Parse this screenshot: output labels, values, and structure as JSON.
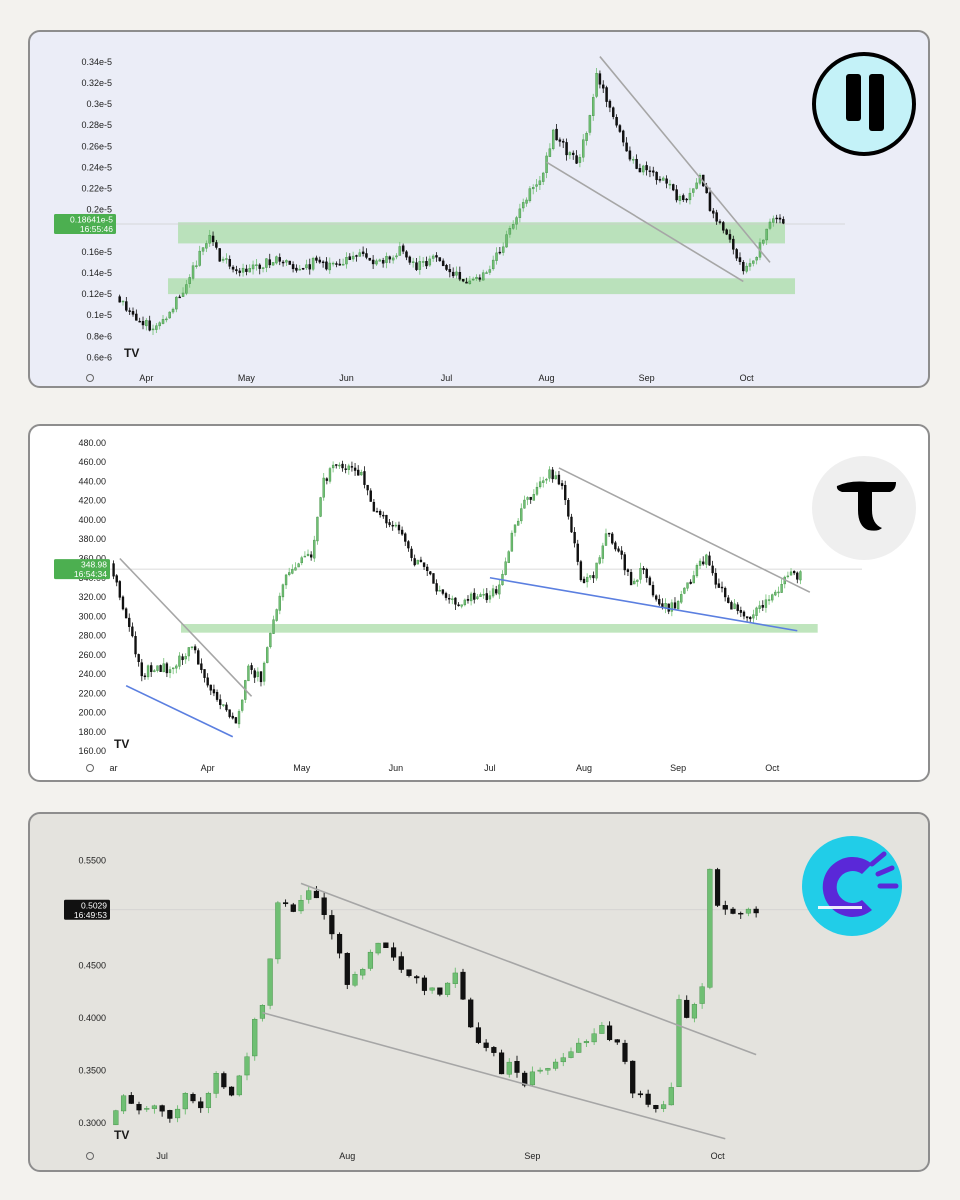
{
  "chart_data": [
    {
      "type": "candlestick",
      "y_ticks": [
        "0.34e-5",
        "0.32e-5",
        "0.3e-5",
        "0.28e-5",
        "0.26e-5",
        "0.24e-5",
        "0.22e-5",
        "0.2e-5",
        "0.16e-5",
        "0.14e-5",
        "0.12e-5",
        "0.1e-5",
        "0.8e-6",
        "0.6e-6"
      ],
      "y_tick_values": [
        3.4,
        3.2,
        3.0,
        2.8,
        2.6,
        2.4,
        2.2,
        2.0,
        1.6,
        1.4,
        1.2,
        1.0,
        0.8,
        0.6
      ],
      "y_unit_note": "values in units of 1e-6",
      "ylim": [
        0.5,
        3.55
      ],
      "x_ticks": [
        "Apr",
        "May",
        "Jun",
        "Jul",
        "Aug",
        "Sep",
        "Oct"
      ],
      "x_tick_index": [
        8,
        38,
        68,
        98,
        128,
        158,
        188
      ],
      "x_count": 200,
      "current_price": {
        "value": 1.8641,
        "label": "0.18641e-5",
        "timer": "16:55:46"
      },
      "zones": [
        {
          "from": 1.68,
          "to": 1.88,
          "x_start": 18,
          "x_end": 199
        },
        {
          "from": 1.2,
          "to": 1.35,
          "x_start": 15,
          "x_end": 202
        }
      ],
      "trendlines": [
        {
          "x1": 144,
          "y1": 3.45,
          "x2": 195,
          "y2": 1.5
        },
        {
          "x1": 128,
          "y1": 2.45,
          "x2": 187,
          "y2": 1.32
        }
      ],
      "path": [
        [
          0,
          1.18
        ],
        [
          4,
          1.05
        ],
        [
          8,
          0.92
        ],
        [
          12,
          0.88
        ],
        [
          16,
          1.05
        ],
        [
          20,
          1.25
        ],
        [
          24,
          1.5
        ],
        [
          28,
          1.76
        ],
        [
          31,
          1.55
        ],
        [
          36,
          1.42
        ],
        [
          42,
          1.45
        ],
        [
          48,
          1.55
        ],
        [
          54,
          1.4
        ],
        [
          60,
          1.52
        ],
        [
          66,
          1.44
        ],
        [
          72,
          1.58
        ],
        [
          78,
          1.48
        ],
        [
          85,
          1.62
        ],
        [
          90,
          1.45
        ],
        [
          95,
          1.55
        ],
        [
          100,
          1.4
        ],
        [
          105,
          1.32
        ],
        [
          110,
          1.4
        ],
        [
          114,
          1.55
        ],
        [
          118,
          1.8
        ],
        [
          124,
          2.2
        ],
        [
          128,
          2.35
        ],
        [
          131,
          2.72
        ],
        [
          134,
          2.6
        ],
        [
          138,
          2.45
        ],
        [
          141,
          2.7
        ],
        [
          144,
          3.25
        ],
        [
          147,
          3.05
        ],
        [
          150,
          2.8
        ],
        [
          154,
          2.45
        ],
        [
          160,
          2.35
        ],
        [
          165,
          2.25
        ],
        [
          170,
          2.05
        ],
        [
          175,
          2.28
        ],
        [
          179,
          1.95
        ],
        [
          182,
          1.8
        ],
        [
          185,
          1.62
        ],
        [
          188,
          1.45
        ],
        [
          191,
          1.52
        ],
        [
          194,
          1.72
        ],
        [
          197,
          1.95
        ],
        [
          200,
          1.88
        ]
      ],
      "seed": 11
    },
    {
      "type": "candlestick",
      "y_ticks": [
        "480.00",
        "460.00",
        "440.00",
        "420.00",
        "400.00",
        "380.00",
        "360.00",
        "340.00",
        "320.00",
        "300.00",
        "280.00",
        "260.00",
        "240.00",
        "220.00",
        "200.00",
        "180.00",
        "160.00"
      ],
      "y_tick_values": [
        480,
        460,
        440,
        420,
        400,
        380,
        360,
        340,
        320,
        300,
        280,
        260,
        240,
        220,
        200,
        180,
        160
      ],
      "ylim": [
        155,
        483
      ],
      "x_ticks": [
        "ar",
        "Apr",
        "May",
        "Jun",
        "Jul",
        "Aug",
        "Sep",
        "Oct"
      ],
      "x_tick_index": [
        0,
        30,
        60,
        90,
        120,
        150,
        180,
        210
      ],
      "x_count": 220,
      "current_price": {
        "value": 348.98,
        "label": "348.98",
        "timer": "16:54:34"
      },
      "zones": [
        {
          "from": 283,
          "to": 292,
          "x_start": 22,
          "x_end": 224
        }
      ],
      "trendlines": [
        {
          "x1": 2,
          "y1": 360,
          "x2": 44,
          "y2": 217
        },
        {
          "x1": 4,
          "y1": 228,
          "x2": 38,
          "y2": 175
        },
        {
          "x1": 142,
          "y1": 454,
          "x2": 222,
          "y2": 325
        },
        {
          "x1": 120,
          "y1": 340,
          "x2": 218,
          "y2": 285
        }
      ],
      "path": [
        [
          0,
          355
        ],
        [
          6,
          290
        ],
        [
          10,
          240
        ],
        [
          14,
          248
        ],
        [
          20,
          245
        ],
        [
          26,
          272
        ],
        [
          30,
          235
        ],
        [
          34,
          212
        ],
        [
          38,
          200
        ],
        [
          40,
          185
        ],
        [
          44,
          245
        ],
        [
          48,
          235
        ],
        [
          52,
          300
        ],
        [
          56,
          345
        ],
        [
          60,
          355
        ],
        [
          64,
          362
        ],
        [
          68,
          440
        ],
        [
          72,
          462
        ],
        [
          76,
          455
        ],
        [
          80,
          448
        ],
        [
          84,
          412
        ],
        [
          88,
          400
        ],
        [
          92,
          392
        ],
        [
          96,
          360
        ],
        [
          100,
          350
        ],
        [
          104,
          330
        ],
        [
          110,
          312
        ],
        [
          116,
          322
        ],
        [
          120,
          318
        ],
        [
          124,
          330
        ],
        [
          128,
          385
        ],
        [
          132,
          422
        ],
        [
          136,
          430
        ],
        [
          140,
          450
        ],
        [
          144,
          436
        ],
        [
          148,
          372
        ],
        [
          150,
          335
        ],
        [
          154,
          342
        ],
        [
          158,
          385
        ],
        [
          162,
          370
        ],
        [
          166,
          332
        ],
        [
          170,
          350
        ],
        [
          174,
          315
        ],
        [
          178,
          308
        ],
        [
          182,
          318
        ],
        [
          186,
          345
        ],
        [
          190,
          362
        ],
        [
          194,
          330
        ],
        [
          198,
          312
        ],
        [
          202,
          298
        ],
        [
          206,
          305
        ],
        [
          210,
          318
        ],
        [
          214,
          330
        ],
        [
          216,
          342
        ]
      ],
      "seed": 23
    },
    {
      "type": "candlestick",
      "y_ticks": [
        "0.5500",
        "0.4500",
        "0.4000",
        "0.3500",
        "0.3000"
      ],
      "y_tick_values": [
        0.55,
        0.45,
        0.4,
        0.35,
        0.3
      ],
      "ylim": [
        0.28,
        0.575
      ],
      "x_ticks": [
        "Jul",
        "Aug",
        "Sep",
        "Oct"
      ],
      "x_tick_index": [
        6,
        30,
        54,
        78
      ],
      "x_count": 84,
      "current_price": {
        "value": 0.5029,
        "label": "0.5029",
        "timer": "16:49:53"
      },
      "zones": [],
      "trendlines": [
        {
          "x1": 24,
          "y1": 0.528,
          "x2": 83,
          "y2": 0.365
        },
        {
          "x1": 19,
          "y1": 0.405,
          "x2": 79,
          "y2": 0.285
        }
      ],
      "path": [
        [
          0,
          0.298
        ],
        [
          2,
          0.33
        ],
        [
          4,
          0.31
        ],
        [
          6,
          0.32
        ],
        [
          8,
          0.305
        ],
        [
          10,
          0.33
        ],
        [
          12,
          0.315
        ],
        [
          14,
          0.345
        ],
        [
          16,
          0.33
        ],
        [
          18,
          0.36
        ],
        [
          19,
          0.4
        ],
        [
          20,
          0.415
        ],
        [
          21,
          0.46
        ],
        [
          22,
          0.51
        ],
        [
          24,
          0.505
        ],
        [
          26,
          0.522
        ],
        [
          28,
          0.5
        ],
        [
          29,
          0.48
        ],
        [
          30,
          0.46
        ],
        [
          31,
          0.43
        ],
        [
          33,
          0.45
        ],
        [
          35,
          0.47
        ],
        [
          37,
          0.46
        ],
        [
          39,
          0.44
        ],
        [
          41,
          0.43
        ],
        [
          43,
          0.42
        ],
        [
          45,
          0.44
        ],
        [
          46,
          0.42
        ],
        [
          47,
          0.39
        ],
        [
          48,
          0.38
        ],
        [
          50,
          0.365
        ],
        [
          51,
          0.345
        ],
        [
          52,
          0.355
        ],
        [
          54,
          0.34
        ],
        [
          56,
          0.35
        ],
        [
          58,
          0.36
        ],
        [
          60,
          0.37
        ],
        [
          62,
          0.38
        ],
        [
          64,
          0.39
        ],
        [
          66,
          0.375
        ],
        [
          67,
          0.36
        ],
        [
          68,
          0.33
        ],
        [
          70,
          0.315
        ],
        [
          71,
          0.31
        ],
        [
          72,
          0.32
        ],
        [
          73,
          0.33
        ],
        [
          74,
          0.42
        ],
        [
          75,
          0.4
        ],
        [
          76,
          0.41
        ],
        [
          77,
          0.43
        ],
        [
          78,
          0.54
        ],
        [
          79,
          0.503
        ]
      ],
      "seed": 37
    }
  ],
  "logos": [
    {
      "name": "pause-style logo",
      "bg": "#c4f2f8",
      "fg": "#000000"
    },
    {
      "name": "T logo",
      "bg": "#efefef",
      "fg": "#000000"
    },
    {
      "name": "C logo",
      "bg": "#21cde8",
      "fg": "#5a28d8"
    }
  ],
  "colors": {
    "up": "#6fbf73",
    "down": "#111111",
    "zone": "#a9dca7",
    "trend_gray": "#a6a6a6",
    "trend_blue": "#5b7fe0",
    "tag_green": "#4caf50"
  },
  "watermark": "TV"
}
